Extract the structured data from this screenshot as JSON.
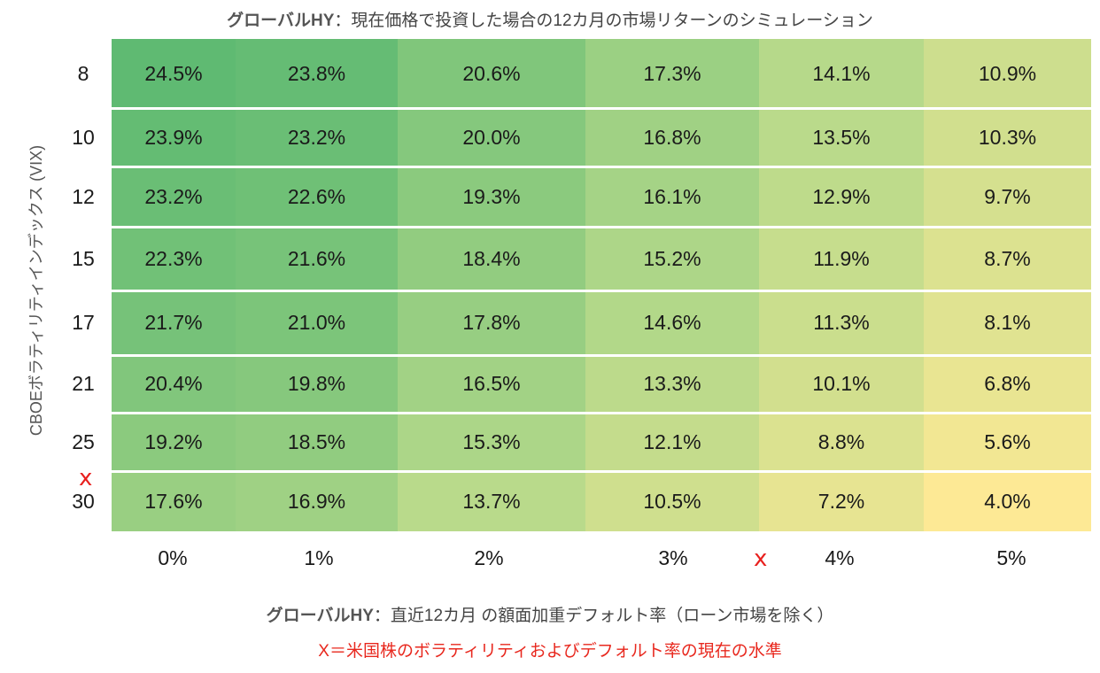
{
  "title": {
    "bold": "グローバルHY",
    "rest": "：現在価格で投資した場合の12カ月の市場リターンのシミュレーション"
  },
  "ylabel": "CBOEボラティリティインデックス (VIX)",
  "xlabel": {
    "bold": "グローバルHY",
    "rest": "：直近12カ月 の額面加重デフォルト率（ローン市場を除く）"
  },
  "note": "X＝米国株のボラティリティおよびデフォルト率の現在の水準",
  "marker_symbol": "x",
  "marker_color": "#e8201e",
  "chart_data": {
    "type": "heatmap",
    "x_categories": [
      "0%",
      "1%",
      "2%",
      "3%",
      "4%",
      "5%"
    ],
    "y_categories": [
      "8",
      "10",
      "12",
      "15",
      "17",
      "21",
      "25",
      "30"
    ],
    "values": [
      [
        24.5,
        23.8,
        20.6,
        17.3,
        14.1,
        10.9
      ],
      [
        23.9,
        23.2,
        20.0,
        16.8,
        13.5,
        10.3
      ],
      [
        23.2,
        22.6,
        19.3,
        16.1,
        12.9,
        9.7
      ],
      [
        22.3,
        21.6,
        18.4,
        15.2,
        11.9,
        8.7
      ],
      [
        21.7,
        21.0,
        17.8,
        14.6,
        11.3,
        8.1
      ],
      [
        20.4,
        19.8,
        16.5,
        13.3,
        10.1,
        6.8
      ],
      [
        19.2,
        18.5,
        15.3,
        12.1,
        8.8,
        5.6
      ],
      [
        17.6,
        16.9,
        13.7,
        10.5,
        7.2,
        4.0
      ]
    ],
    "value_format": "percent_1dp",
    "color_scale": {
      "low": "#fde995",
      "mid": "#b5d98a",
      "high": "#5fba72"
    },
    "current_level_markers": {
      "x_between": [
        "3%",
        "4%"
      ],
      "y_between": [
        "25",
        "30"
      ]
    }
  }
}
